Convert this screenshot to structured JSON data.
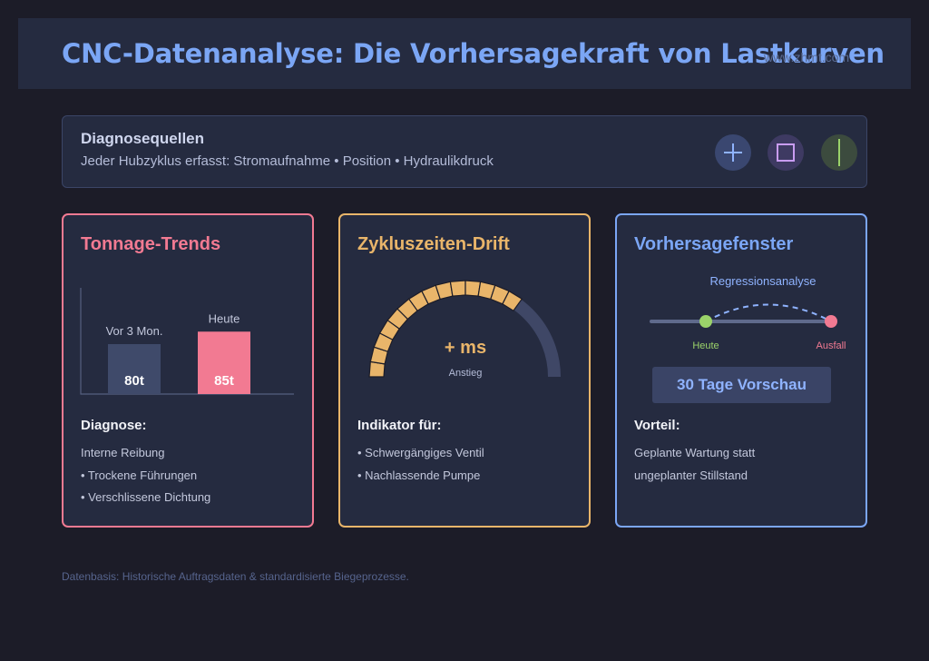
{
  "header": {
    "title": "CNC-Datenanalyse: Die Vorhersagekraft von Lastkurven",
    "watermark": "www.zhmt.com"
  },
  "sources": {
    "title": "Diagnosequellen",
    "subtitle": "Jeder Hubzyklus erfasst: Stromaufnahme • Position • Hydraulikdruck",
    "icons": [
      "plus-icon",
      "square-icon",
      "vertical-line-icon"
    ],
    "colors": {
      "plus": "#8fb3ff",
      "square": "#c99cf2",
      "line": "#9bd36a"
    }
  },
  "cards": {
    "tonnage": {
      "title": "Tonnage-Trends",
      "head": "Diagnose:",
      "lines": [
        "Interne Reibung",
        "• Trockene Führungen",
        "• Verschlissene Dichtung"
      ]
    },
    "cycle": {
      "title": "Zykluszeiten-Drift",
      "head": "Indikator für:",
      "lines": [
        "• Schwergängiges Ventil",
        "• Nachlassende Pumpe"
      ],
      "gauge": {
        "value_label": "+ ms",
        "caption": "Anstieg",
        "level": 0.72
      }
    },
    "forecast": {
      "title": "Vorhersagefenster",
      "regression_label": "Regressionsanalyse",
      "start_label": "Heute",
      "end_label": "Ausfall",
      "button": "30 Tage Vorschau",
      "head": "Vorteil:",
      "lines": [
        "Geplante Wartung statt",
        "ungeplanter Stillstand"
      ]
    }
  },
  "chart_data": {
    "type": "bar",
    "categories": [
      "Vor 3 Mon.",
      "Heute"
    ],
    "values": [
      80,
      85
    ],
    "value_labels": [
      "80t",
      "85t"
    ],
    "colors": [
      "#3f4a6a",
      "#f27a92"
    ]
  },
  "footer": "Datenbasis: Historische Auftragsdaten & standardisierte Biegeprozesse."
}
